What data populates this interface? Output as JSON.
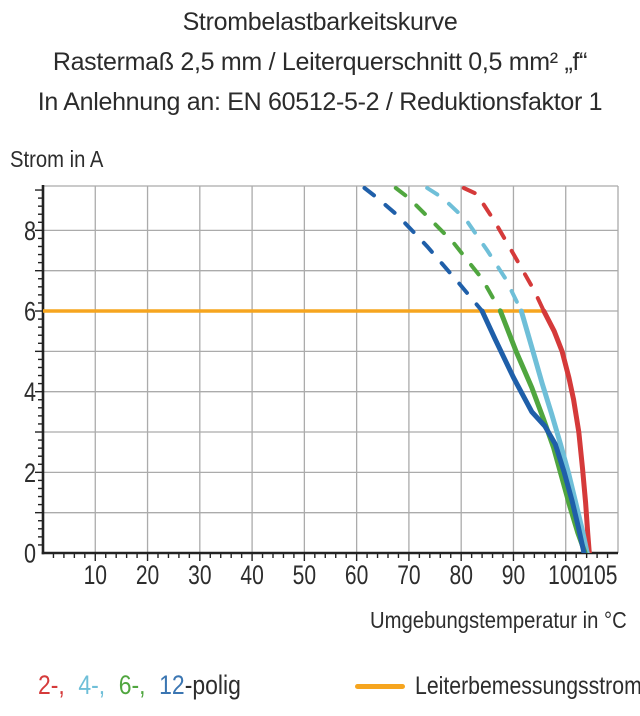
{
  "header": {
    "title": "Strombelastbarkeitskurve",
    "subtitle1": "Rastermaß 2,5 mm / Leiterquerschnitt 0,5 mm² „f“",
    "subtitle2": "In Anlehnung an: EN 60512-5-2 / Reduktionsfaktor 1"
  },
  "chart_data": {
    "type": "line",
    "title": "Strombelastbarkeitskurve",
    "ylabel": "Strom in A",
    "xlabel": "Umgebungstemperatur in °C",
    "grid_color": "#ABABAB",
    "axis_color": "#222222",
    "text_color": "#2d2d2d",
    "x_axis": {
      "min": 0,
      "max": 110,
      "grid_step": 10,
      "minor_tick_step": 2,
      "tick_values": [
        10,
        20,
        30,
        40,
        50,
        60,
        70,
        80,
        90,
        100,
        105
      ],
      "tick_labels": [
        "10",
        "20",
        "30",
        "40",
        "50",
        "60",
        "70",
        "80",
        "90",
        "100",
        "105"
      ]
    },
    "y_axis": {
      "min": 0,
      "max": 9.1,
      "grid_step": 1,
      "minor_tick_step": 0.2,
      "tick_values": [
        0,
        2,
        4,
        6,
        8
      ],
      "tick_labels": [
        "0",
        "2",
        "4",
        "6",
        "8"
      ]
    },
    "dashed_above_current": 6,
    "rated_current": {
      "value": 6,
      "x_start": 0,
      "x_end": 96,
      "color": "#F6A51F",
      "label": "Leiterbemessungsstrom"
    },
    "series": [
      {
        "name": "2-polig",
        "color": "#D53A3A",
        "points": [
          [
            80.5,
            9.05
          ],
          [
            83,
            8.9
          ],
          [
            86.5,
            8.2
          ],
          [
            90.5,
            7.3
          ],
          [
            94,
            6.5
          ],
          [
            95.8,
            6.0
          ],
          [
            97.8,
            5.5
          ],
          [
            99.3,
            5.0
          ],
          [
            100.6,
            4.35
          ],
          [
            101.5,
            3.8
          ],
          [
            102.5,
            3.0
          ],
          [
            103.2,
            2.1
          ],
          [
            103.8,
            1.25
          ],
          [
            104.2,
            0.5
          ],
          [
            104.5,
            0
          ]
        ]
      },
      {
        "name": "4-polig",
        "color": "#6FBFD8",
        "points": [
          [
            73.5,
            9.05
          ],
          [
            76.5,
            8.8
          ],
          [
            81,
            8.25
          ],
          [
            85,
            7.5
          ],
          [
            88.5,
            6.8
          ],
          [
            91.5,
            6.0
          ],
          [
            93.5,
            5.1
          ],
          [
            95.5,
            4.2
          ],
          [
            97.3,
            3.45
          ],
          [
            99,
            2.7
          ],
          [
            100.6,
            1.95
          ],
          [
            102,
            1.2
          ],
          [
            103.2,
            0.55
          ],
          [
            104.1,
            0
          ]
        ]
      },
      {
        "name": "6-polig",
        "color": "#50A63F",
        "points": [
          [
            67.5,
            9.05
          ],
          [
            70,
            8.8
          ],
          [
            73.5,
            8.35
          ],
          [
            78.5,
            7.7
          ],
          [
            84,
            6.8
          ],
          [
            87.5,
            6.0
          ],
          [
            90.5,
            5.0
          ],
          [
            93.5,
            4.1
          ],
          [
            95.8,
            3.3
          ],
          [
            97.7,
            2.6
          ],
          [
            99.3,
            1.85
          ],
          [
            100.8,
            1.15
          ],
          [
            102.3,
            0.5
          ],
          [
            103.7,
            0
          ]
        ]
      },
      {
        "name": "12-polig",
        "color": "#1F5FA9",
        "points": [
          [
            61.5,
            9.05
          ],
          [
            64,
            8.8
          ],
          [
            68,
            8.35
          ],
          [
            73.5,
            7.6
          ],
          [
            79.5,
            6.7
          ],
          [
            84,
            6.0
          ],
          [
            86.5,
            5.3
          ],
          [
            90,
            4.35
          ],
          [
            93.5,
            3.5
          ],
          [
            96,
            3.15
          ],
          [
            98,
            2.7
          ],
          [
            99.7,
            2.0
          ],
          [
            101.2,
            1.3
          ],
          [
            102.4,
            0.65
          ],
          [
            103.5,
            0
          ]
        ]
      }
    ]
  },
  "legend": {
    "poles": [
      {
        "label": "2-,",
        "color": "#D53A3A"
      },
      {
        "label": "4-,",
        "color": "#6FBFD8"
      },
      {
        "label": "6-,",
        "color": "#50A63F"
      },
      {
        "label": "12",
        "color": "#3B76B2"
      },
      {
        "label": "-polig",
        "color": "#2d2d2d"
      }
    ],
    "rated_label": "Leiterbemessungsstrom",
    "rated_color": "#F6A51F"
  }
}
